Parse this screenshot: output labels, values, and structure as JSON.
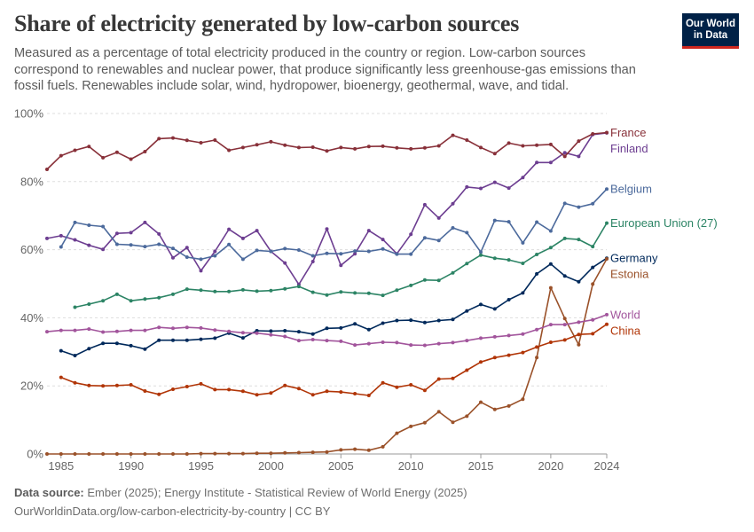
{
  "header": {
    "title": "Share of electricity generated by low-carbon sources",
    "subtitle": "Measured as a percentage of total electricity produced in the country or region. Low-carbon sources correspond to renewables and nuclear power, that produce significantly less greenhouse-gas emissions than fossil fuels. Renewables include solar, wind, hydropower, bioenergy, geothermal, wave, and tidal.",
    "logo_line1": "Our World",
    "logo_line2": "in Data"
  },
  "footer": {
    "source_label": "Data source:",
    "source_text": "Ember (2025); Energy Institute - Statistical Review of World Energy (2025)",
    "url_text": "OurWorldinData.org/low-carbon-electricity-by-country | CC BY"
  },
  "chart_data": {
    "type": "line",
    "x_start": 1984,
    "x_end": 2024,
    "xlim": [
      1984,
      2024
    ],
    "ylim": [
      0,
      100
    ],
    "x_ticks": [
      1985,
      1990,
      1995,
      2000,
      2005,
      2010,
      2015,
      2020,
      2024
    ],
    "x_tick_labels": [
      "1985",
      "1990",
      "1995",
      "2000",
      "2005",
      "2010",
      "2015",
      "2020",
      "2024"
    ],
    "y_ticks": [
      0,
      20,
      40,
      60,
      80,
      100
    ],
    "y_tick_labels": [
      "0%",
      "20%",
      "40%",
      "60%",
      "80%",
      "100%"
    ],
    "grid": "horizontal dashed",
    "legend": "right, line-end labels",
    "series": [
      {
        "name": "Finland",
        "color": "#6d3e91",
        "values": [
          63.3,
          64.1,
          62.9,
          61.3,
          60.1,
          64.8,
          65.0,
          68.0,
          64.6,
          57.6,
          60.6,
          53.8,
          59.5,
          66.0,
          63.3,
          65.6,
          59.5,
          56.1,
          49.8,
          56.5,
          66.1,
          55.4,
          58.8,
          65.6,
          63.0,
          58.8,
          64.5,
          73.2,
          69.3,
          73.5,
          78.4,
          78.0,
          79.8,
          78.1,
          81.2,
          85.6,
          85.6,
          88.5,
          87.4,
          93.8,
          94.3
        ]
      },
      {
        "name": "France",
        "color": "#883039",
        "values": [
          83.6,
          87.6,
          89.2,
          90.3,
          87.0,
          88.6,
          86.6,
          88.8,
          92.6,
          92.8,
          92.1,
          91.4,
          92.2,
          89.2,
          90.0,
          90.8,
          91.7,
          90.7,
          90.0,
          90.1,
          89.0,
          90.0,
          89.6,
          90.3,
          90.4,
          89.9,
          89.6,
          89.9,
          90.5,
          93.6,
          92.2,
          90.0,
          88.2,
          91.3,
          90.5,
          90.7,
          90.9,
          87.4,
          91.9,
          94.0,
          94.4
        ]
      },
      {
        "name": "Belgium",
        "color": "#4c6a9c",
        "values": [
          60.8,
          68.0,
          67.2,
          66.8,
          61.6,
          61.4,
          60.9,
          61.6,
          60.4,
          57.8,
          57.2,
          58.2,
          61.5,
          57.2,
          59.8,
          59.5,
          60.3,
          59.9,
          58.2,
          58.9,
          58.8,
          59.6,
          59.5,
          60.2,
          58.7,
          58.7,
          63.5,
          62.7,
          66.4,
          65.0,
          59.3,
          68.6,
          68.2,
          62.0,
          68.1,
          65.5,
          73.6,
          72.5,
          73.5,
          77.8
        ]
      },
      {
        "name": "European Union (27)",
        "color": "#2c8465",
        "values": [
          43.1,
          44.0,
          45.0,
          46.9,
          45.0,
          45.5,
          45.9,
          46.9,
          48.4,
          48.1,
          47.7,
          47.7,
          48.2,
          47.8,
          48.0,
          48.5,
          49.2,
          47.5,
          46.7,
          47.6,
          47.3,
          47.2,
          46.6,
          48.1,
          49.5,
          51.1,
          51.0,
          53.2,
          55.9,
          58.4,
          57.5,
          57.0,
          56.0,
          58.6,
          60.6,
          63.3,
          63.0,
          60.9,
          67.8
        ]
      },
      {
        "name": "Germany",
        "color": "#00295b",
        "values": [
          30.3,
          28.9,
          30.9,
          32.5,
          32.5,
          31.8,
          30.8,
          33.4,
          33.4,
          33.4,
          33.7,
          34.0,
          35.5,
          34.1,
          36.2,
          36.1,
          36.2,
          35.9,
          35.2,
          36.9,
          37.0,
          38.2,
          36.5,
          38.4,
          39.2,
          39.3,
          38.6,
          39.2,
          39.5,
          42.0,
          43.9,
          42.6,
          45.3,
          47.3,
          52.9,
          55.8,
          52.3,
          50.6,
          54.8,
          57.5
        ]
      },
      {
        "name": "Estonia",
        "color": "#9a5129",
        "values": [
          0,
          0,
          0,
          0,
          0,
          0,
          0,
          0,
          0,
          0,
          0,
          0.1,
          0.1,
          0.1,
          0.1,
          0.2,
          0.2,
          0.3,
          0.4,
          0.5,
          0.6,
          1.2,
          1.4,
          1.1,
          2.1,
          6.1,
          8.1,
          9.2,
          12.4,
          9.3,
          11.1,
          15.2,
          13.1,
          14.1,
          16.1,
          28.3,
          48.8,
          39.8,
          32.1,
          49.9,
          57.3
        ]
      },
      {
        "name": "World",
        "color": "#a2559c",
        "values": [
          35.9,
          36.3,
          36.3,
          36.7,
          35.8,
          36.0,
          36.3,
          36.3,
          37.2,
          36.9,
          37.2,
          37.0,
          36.4,
          36.0,
          35.6,
          35.5,
          35.0,
          34.5,
          33.3,
          33.6,
          33.3,
          33.1,
          32.0,
          32.4,
          32.8,
          32.7,
          32.0,
          31.9,
          32.4,
          32.7,
          33.3,
          34.0,
          34.4,
          34.8,
          35.2,
          36.5,
          38.0,
          38.0,
          38.7,
          39.4,
          40.9
        ]
      },
      {
        "name": "China",
        "color": "#b13507",
        "values": [
          22.5,
          20.9,
          20.1,
          20.0,
          20.1,
          20.3,
          18.5,
          17.5,
          19.0,
          19.8,
          20.6,
          18.9,
          18.9,
          18.4,
          17.4,
          17.9,
          20.1,
          19.2,
          17.4,
          18.4,
          18.2,
          17.7,
          17.2,
          20.9,
          19.6,
          20.3,
          18.7,
          22.0,
          22.2,
          24.6,
          27.0,
          28.3,
          29.0,
          29.8,
          31.4,
          32.8,
          33.5,
          35.1,
          35.3,
          38.1
        ]
      }
    ]
  }
}
